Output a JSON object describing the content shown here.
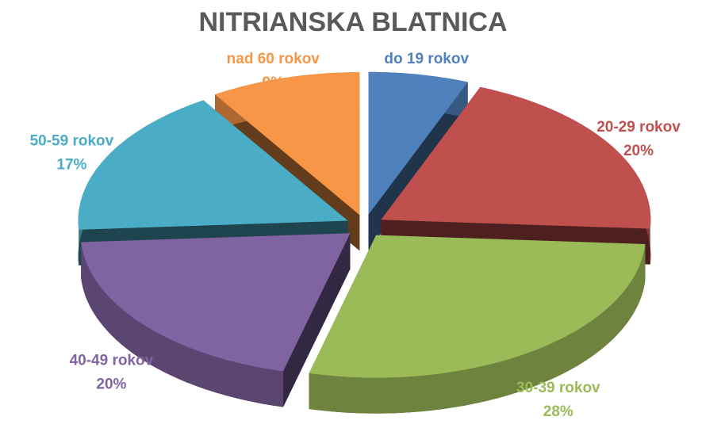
{
  "chart_data": {
    "type": "pie",
    "title": "NITRIANSKA BLATNICA",
    "categories": [
      "do 19 rokov",
      "20-29 rokov",
      "30-39 rokov",
      "40-49 rokov",
      "50-59 rokov",
      "nad 60 rokov"
    ],
    "values": [
      6,
      20,
      28,
      20,
      17,
      9
    ],
    "value_labels": [
      "6%",
      "20%",
      "28%",
      "20%",
      "17%",
      "9%"
    ],
    "colors": [
      "#4f81bd",
      "#c0504d",
      "#9bbb59",
      "#8064a2",
      "#4bacc6",
      "#f79646"
    ]
  }
}
